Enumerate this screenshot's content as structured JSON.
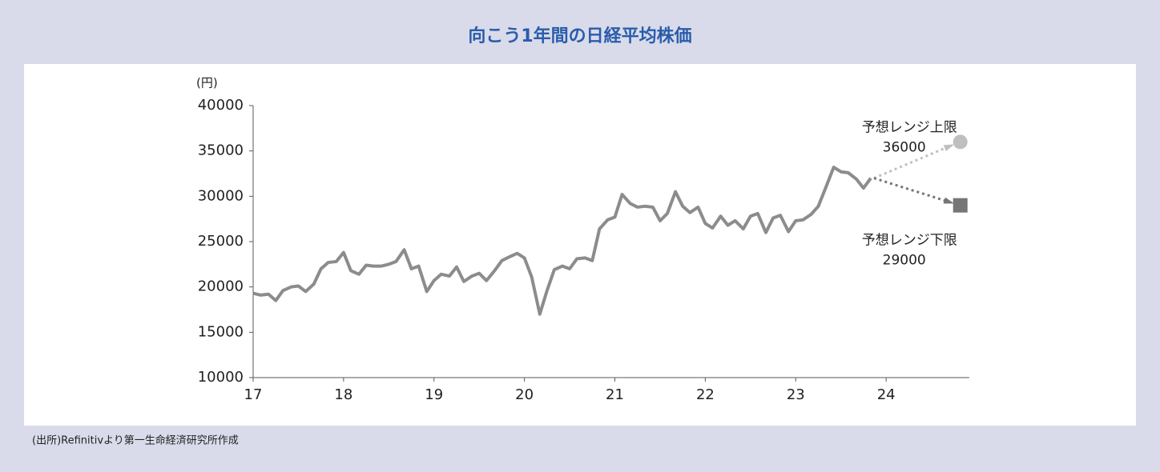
{
  "chart_data": {
    "type": "line",
    "title": "向こう1年間の日経平均株価",
    "y_label": "(円)",
    "source": "(出所)Refinitivより第一生命経済研究所作成",
    "color": "#8c8c8c",
    "x": [
      17,
      17.08,
      17.17,
      17.25,
      17.33,
      17.42,
      17.5,
      17.58,
      17.67,
      17.75,
      17.83,
      17.92,
      18,
      18.08,
      18.17,
      18.25,
      18.33,
      18.42,
      18.5,
      18.58,
      18.67,
      18.75,
      18.83,
      18.92,
      19,
      19.08,
      19.17,
      19.25,
      19.33,
      19.42,
      19.5,
      19.58,
      19.67,
      19.75,
      19.83,
      19.92,
      20,
      20.08,
      20.17,
      20.25,
      20.33,
      20.42,
      20.5,
      20.58,
      20.67,
      20.75,
      20.83,
      20.92,
      21,
      21.08,
      21.17,
      21.25,
      21.33,
      21.42,
      21.5,
      21.58,
      21.67,
      21.75,
      21.83,
      21.92,
      22,
      22.08,
      22.17,
      22.25,
      22.33,
      22.42,
      22.5,
      22.58,
      22.67,
      22.75,
      22.83,
      22.92,
      23,
      23.08,
      23.17,
      23.25,
      23.33,
      23.42,
      23.5,
      23.58,
      23.67,
      23.75,
      23.83
    ],
    "values": [
      19300,
      19100,
      19200,
      18500,
      19600,
      20000,
      20100,
      19500,
      20300,
      22000,
      22700,
      22800,
      23800,
      21800,
      21400,
      22400,
      22300,
      22300,
      22500,
      22800,
      24100,
      22000,
      22300,
      19500,
      20700,
      21400,
      21200,
      22200,
      20600,
      21200,
      21500,
      20700,
      21800,
      22900,
      23300,
      23700,
      23200,
      21100,
      17000,
      19600,
      21900,
      22300,
      22000,
      23100,
      23200,
      22900,
      26400,
      27400,
      27700,
      30200,
      29200,
      28800,
      28900,
      28800,
      27300,
      28100,
      30500,
      28900,
      28200,
      28800,
      27000,
      26500,
      27800,
      26800,
      27300,
      26400,
      27800,
      28100,
      26000,
      27600,
      27900,
      26100,
      27300,
      27400,
      28000,
      28900,
      30900,
      33200,
      32700,
      32600,
      31900,
      30900,
      32000
    ],
    "xlim": [
      17,
      24.92
    ],
    "xticks": [
      17,
      18,
      19,
      20,
      21,
      22,
      23,
      24
    ],
    "ylim": [
      10000,
      40000
    ],
    "yticks": [
      10000,
      15000,
      20000,
      25000,
      30000,
      35000,
      40000
    ],
    "forecast": [
      {
        "label": "予想レンジ上限",
        "value": 36000,
        "x": 24.82,
        "color": "#bfbfbf"
      },
      {
        "label": "予想レンジ下限",
        "value": 29000,
        "x": 24.82,
        "color": "#767676"
      }
    ]
  }
}
